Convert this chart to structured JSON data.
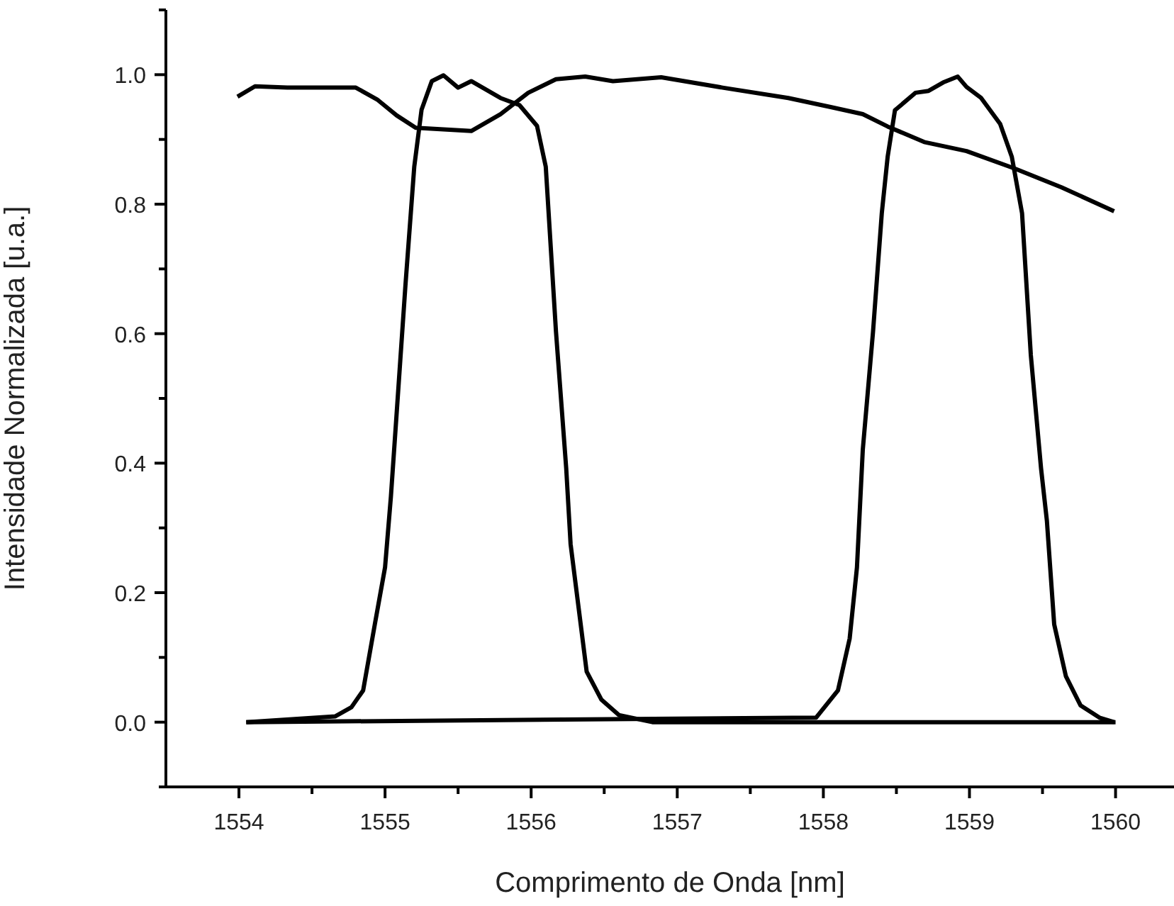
{
  "chart_data": {
    "type": "line",
    "xlabel": "Comprimento de Onda [nm]",
    "ylabel": "Intensidade Normalizada [u.a.]",
    "xlim": [
      1553.5,
      1560.4
    ],
    "ylim": [
      -0.1,
      1.1
    ],
    "xticks": [
      1554,
      {
        "value": 1554.5,
        "label": null
      },
      1555,
      {
        "value": 1555.5,
        "label": null
      },
      1556,
      {
        "value": 1556.5,
        "label": null
      },
      1557,
      {
        "value": 1557.5,
        "label": null
      },
      1558,
      {
        "value": 1558.5,
        "label": null
      },
      1559,
      {
        "value": 1559.5,
        "label": null
      },
      1560
    ],
    "yticks": [
      {
        "value": -0.1,
        "label": null
      },
      {
        "value": 0,
        "label": "0.0"
      },
      {
        "value": 0.1,
        "label": null
      },
      {
        "value": 0.2,
        "label": "0.2"
      },
      {
        "value": 0.3,
        "label": null
      },
      {
        "value": 0.4,
        "label": "0.4"
      },
      {
        "value": 0.5,
        "label": null
      },
      {
        "value": 0.6,
        "label": "0.6"
      },
      {
        "value": 0.7,
        "label": null
      },
      {
        "value": 0.8,
        "label": "0.8"
      },
      {
        "value": 0.9,
        "label": null
      },
      {
        "value": 1.0,
        "label": "1.0"
      },
      {
        "value": 1.1,
        "label": null
      }
    ],
    "series": [
      {
        "color": "#000000",
        "x": [
          1553.99,
          1554.11,
          1554.33,
          1554.8,
          1554.95,
          1555.08,
          1555.21,
          1555.59,
          1555.79,
          1555.98,
          1556.17,
          1556.37,
          1556.56,
          1556.89,
          1557.31,
          1557.76,
          1558.05,
          1558.27,
          1558.44,
          1558.69,
          1558.98,
          1559.31,
          1559.63,
          1559.99
        ],
        "values": [
          0.966,
          0.982,
          0.98,
          0.98,
          0.961,
          0.937,
          0.918,
          0.913,
          0.939,
          0.972,
          0.993,
          0.997,
          0.99,
          0.996,
          0.98,
          0.964,
          0.95,
          0.939,
          0.92,
          0.896,
          0.882,
          0.855,
          0.826,
          0.789
        ]
      },
      {
        "color": "#000000",
        "x": [
          1554.05,
          1554.66,
          1554.77,
          1554.85,
          1554.93,
          1555.0,
          1555.04,
          1555.08,
          1555.14,
          1555.2,
          1555.25,
          1555.32,
          1555.4,
          1555.5,
          1555.59,
          1555.79,
          1555.92,
          1556.04,
          1556.1,
          1556.17,
          1556.24,
          1556.27,
          1556.38,
          1556.48,
          1556.6,
          1556.83,
          1560.0
        ],
        "values": [
          0,
          0.009,
          0.023,
          0.049,
          0.151,
          0.239,
          0.348,
          0.479,
          0.676,
          0.858,
          0.946,
          0.99,
          0.999,
          0.98,
          0.99,
          0.964,
          0.953,
          0.921,
          0.858,
          0.603,
          0.392,
          0.275,
          0.078,
          0.035,
          0.011,
          0,
          0
        ]
      },
      {
        "color": "#000000",
        "x": [
          1554.05,
          1557.95,
          1558.1,
          1558.18,
          1558.23,
          1558.27,
          1558.34,
          1558.4,
          1558.44,
          1558.49,
          1558.63,
          1558.72,
          1558.82,
          1558.92,
          1558.98,
          1559.08,
          1559.21,
          1559.29,
          1559.36,
          1559.42,
          1559.49,
          1559.53,
          1559.58,
          1559.66,
          1559.76,
          1559.89,
          1559.99
        ],
        "values": [
          0,
          0.007,
          0.049,
          0.129,
          0.239,
          0.421,
          0.603,
          0.786,
          0.873,
          0.945,
          0.972,
          0.975,
          0.988,
          0.997,
          0.981,
          0.964,
          0.924,
          0.873,
          0.786,
          0.567,
          0.392,
          0.311,
          0.151,
          0.071,
          0.026,
          0.007,
          0
        ]
      }
    ]
  }
}
